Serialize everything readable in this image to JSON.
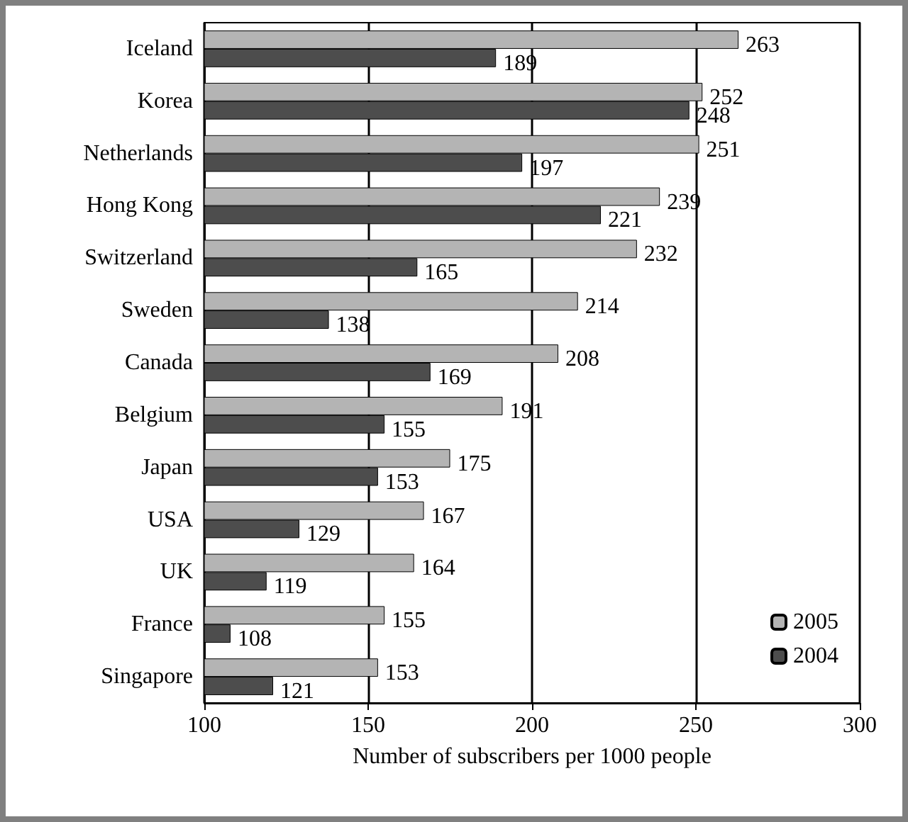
{
  "chart_data": {
    "type": "bar",
    "orientation": "horizontal",
    "xlabel": "Number of subscribers per 1000 people",
    "categories": [
      "Iceland",
      "Korea",
      "Netherlands",
      "Hong Kong",
      "Switzerland",
      "Sweden",
      "Canada",
      "Belgium",
      "Japan",
      "USA",
      "UK",
      "France",
      "Singapore"
    ],
    "series": [
      {
        "name": "2005",
        "color": "#b4b4b4",
        "values": [
          263,
          252,
          251,
          239,
          232,
          214,
          208,
          191,
          175,
          167,
          164,
          155,
          153
        ]
      },
      {
        "name": "2004",
        "color": "#4d4d4d",
        "values": [
          189,
          248,
          197,
          221,
          165,
          138,
          169,
          155,
          153,
          129,
          119,
          108,
          121
        ]
      }
    ],
    "xlim": [
      100,
      300
    ],
    "xticks": [
      100,
      150,
      200,
      250,
      300
    ],
    "grid": "x",
    "legend": "bottom right",
    "data_labels": true
  }
}
